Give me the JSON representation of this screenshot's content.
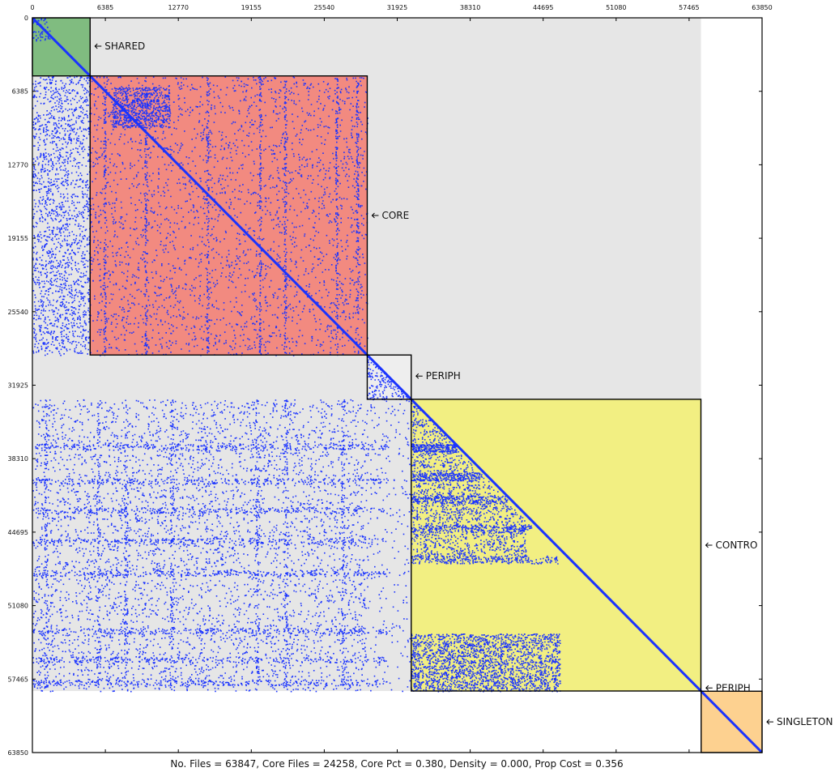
{
  "chart_data": {
    "type": "heatmap",
    "title": "",
    "xlabel": "",
    "ylabel": "",
    "xlim": [
      0,
      63850
    ],
    "ylim": [
      63850,
      0
    ],
    "x_ticks": [
      0,
      6385,
      12770,
      19155,
      25540,
      31925,
      38310,
      44695,
      51080,
      57465,
      63850
    ],
    "y_ticks": [
      0,
      6385,
      12770,
      19155,
      25540,
      31925,
      38310,
      44695,
      51080,
      57465,
      63850
    ],
    "x_tick_labels": [
      "0",
      "6385",
      "12770",
      "19155",
      "25540",
      "31925",
      "38310",
      "44695",
      "51080",
      "57465",
      "63850"
    ],
    "y_tick_labels": [
      "0",
      "6385",
      "12770",
      "19155",
      "25540",
      "31925",
      "38310",
      "44695",
      "51080",
      "57465",
      "63850"
    ],
    "background_color": "#e6e6e6",
    "dot_color": "#1a33ff",
    "blocks": [
      {
        "label": "SHARED",
        "start": 0,
        "end": 5050,
        "color": "#80bc80"
      },
      {
        "label": "CORE",
        "start": 5050,
        "end": 29300,
        "color": "#f28a80"
      },
      {
        "label": "PERIPH",
        "start": 29300,
        "end": 33150,
        "color": "#eeeeee"
      },
      {
        "label": "CONTROL",
        "start": 33150,
        "end": 58500,
        "color": "#f2ef82"
      },
      {
        "label": "PERIPH",
        "start": 58500,
        "end": 58520,
        "color": "#eeeeee"
      },
      {
        "label": "SINGLETON",
        "start": 58520,
        "end": 63850,
        "color": "#fdd190"
      }
    ],
    "block_label_text": [
      "SHARED",
      "CORE",
      "PERIPH",
      "CONTRO",
      "PERIPH",
      "SINGLETON"
    ],
    "white_regions": [
      {
        "x0": 58500,
        "x1": 63850,
        "y0": 0,
        "y1": 58500
      },
      {
        "x0": 0,
        "x1": 58500,
        "y0": 58500,
        "y1": 63850
      }
    ],
    "caption": "No. Files = 63847, Core Files = 24258, Core Pct = 0.380, Density = 0.000, Prop Cost = 0.356",
    "stats": {
      "no_files": 63847,
      "core_files": 24258,
      "core_pct": 0.38,
      "density": 0.0,
      "prop_cost": 0.356
    }
  }
}
